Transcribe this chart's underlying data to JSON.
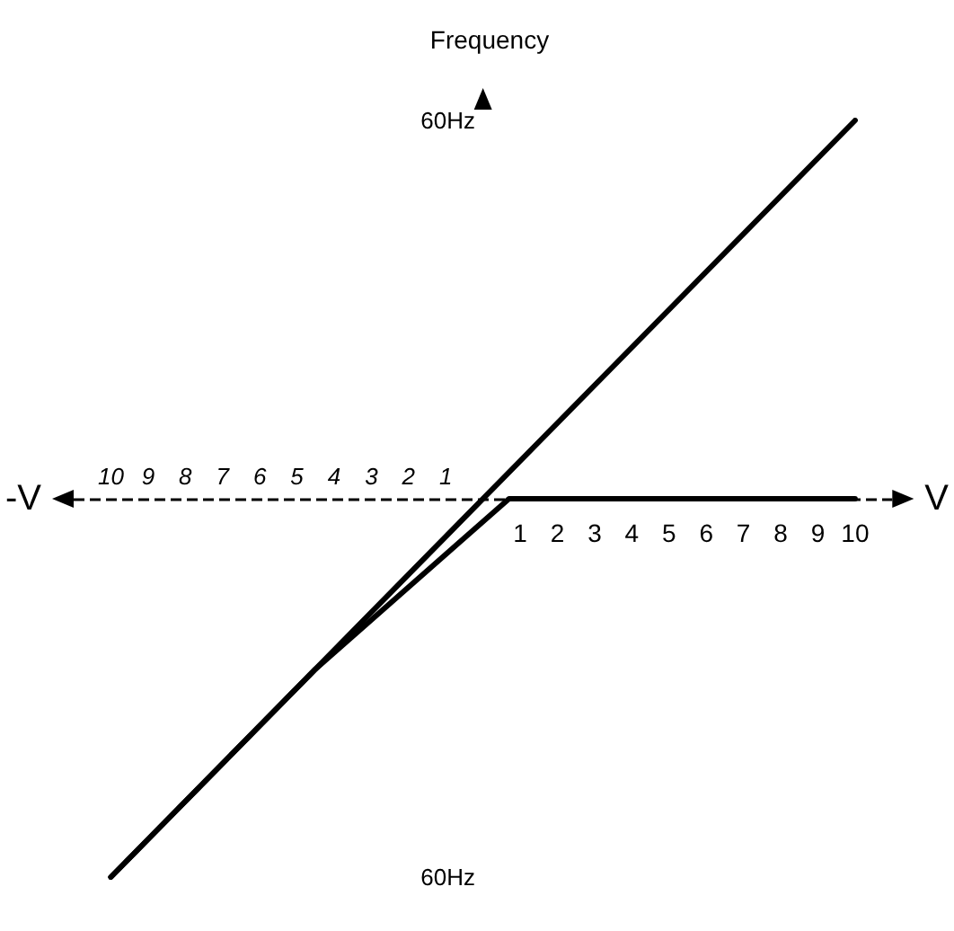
{
  "chart_data": {
    "type": "line",
    "ylabel": "Frequency",
    "xlabel": "V",
    "x2label": "-V",
    "xlim": [
      -11,
      11
    ],
    "ylim": [
      -60,
      60
    ],
    "x2lim": [
      11,
      -11
    ],
    "xticks": [
      1,
      2,
      3,
      4,
      5,
      6,
      7,
      8,
      9,
      10
    ],
    "x2ticks": [
      10,
      9,
      8,
      7,
      6,
      5,
      4,
      3,
      2,
      1
    ],
    "yticks": [
      {
        "value": 60,
        "label": "60Hz"
      },
      {
        "value": -60,
        "label": "60Hz"
      }
    ],
    "series": [
      {
        "color": "#000000",
        "x": [
          -10,
          10
        ],
        "values": [
          -60,
          60
        ]
      },
      {
        "color": "#000000",
        "x": [
          -10,
          -4.5,
          0.7,
          10
        ],
        "values": [
          -60,
          -27,
          0,
          0
        ]
      }
    ],
    "ref_lines": [
      {
        "axis": "y",
        "value": 0,
        "color": "#000000",
        "line_style": "dashed"
      }
    ],
    "grid": false,
    "marker": "none",
    "line_style": "solid"
  }
}
